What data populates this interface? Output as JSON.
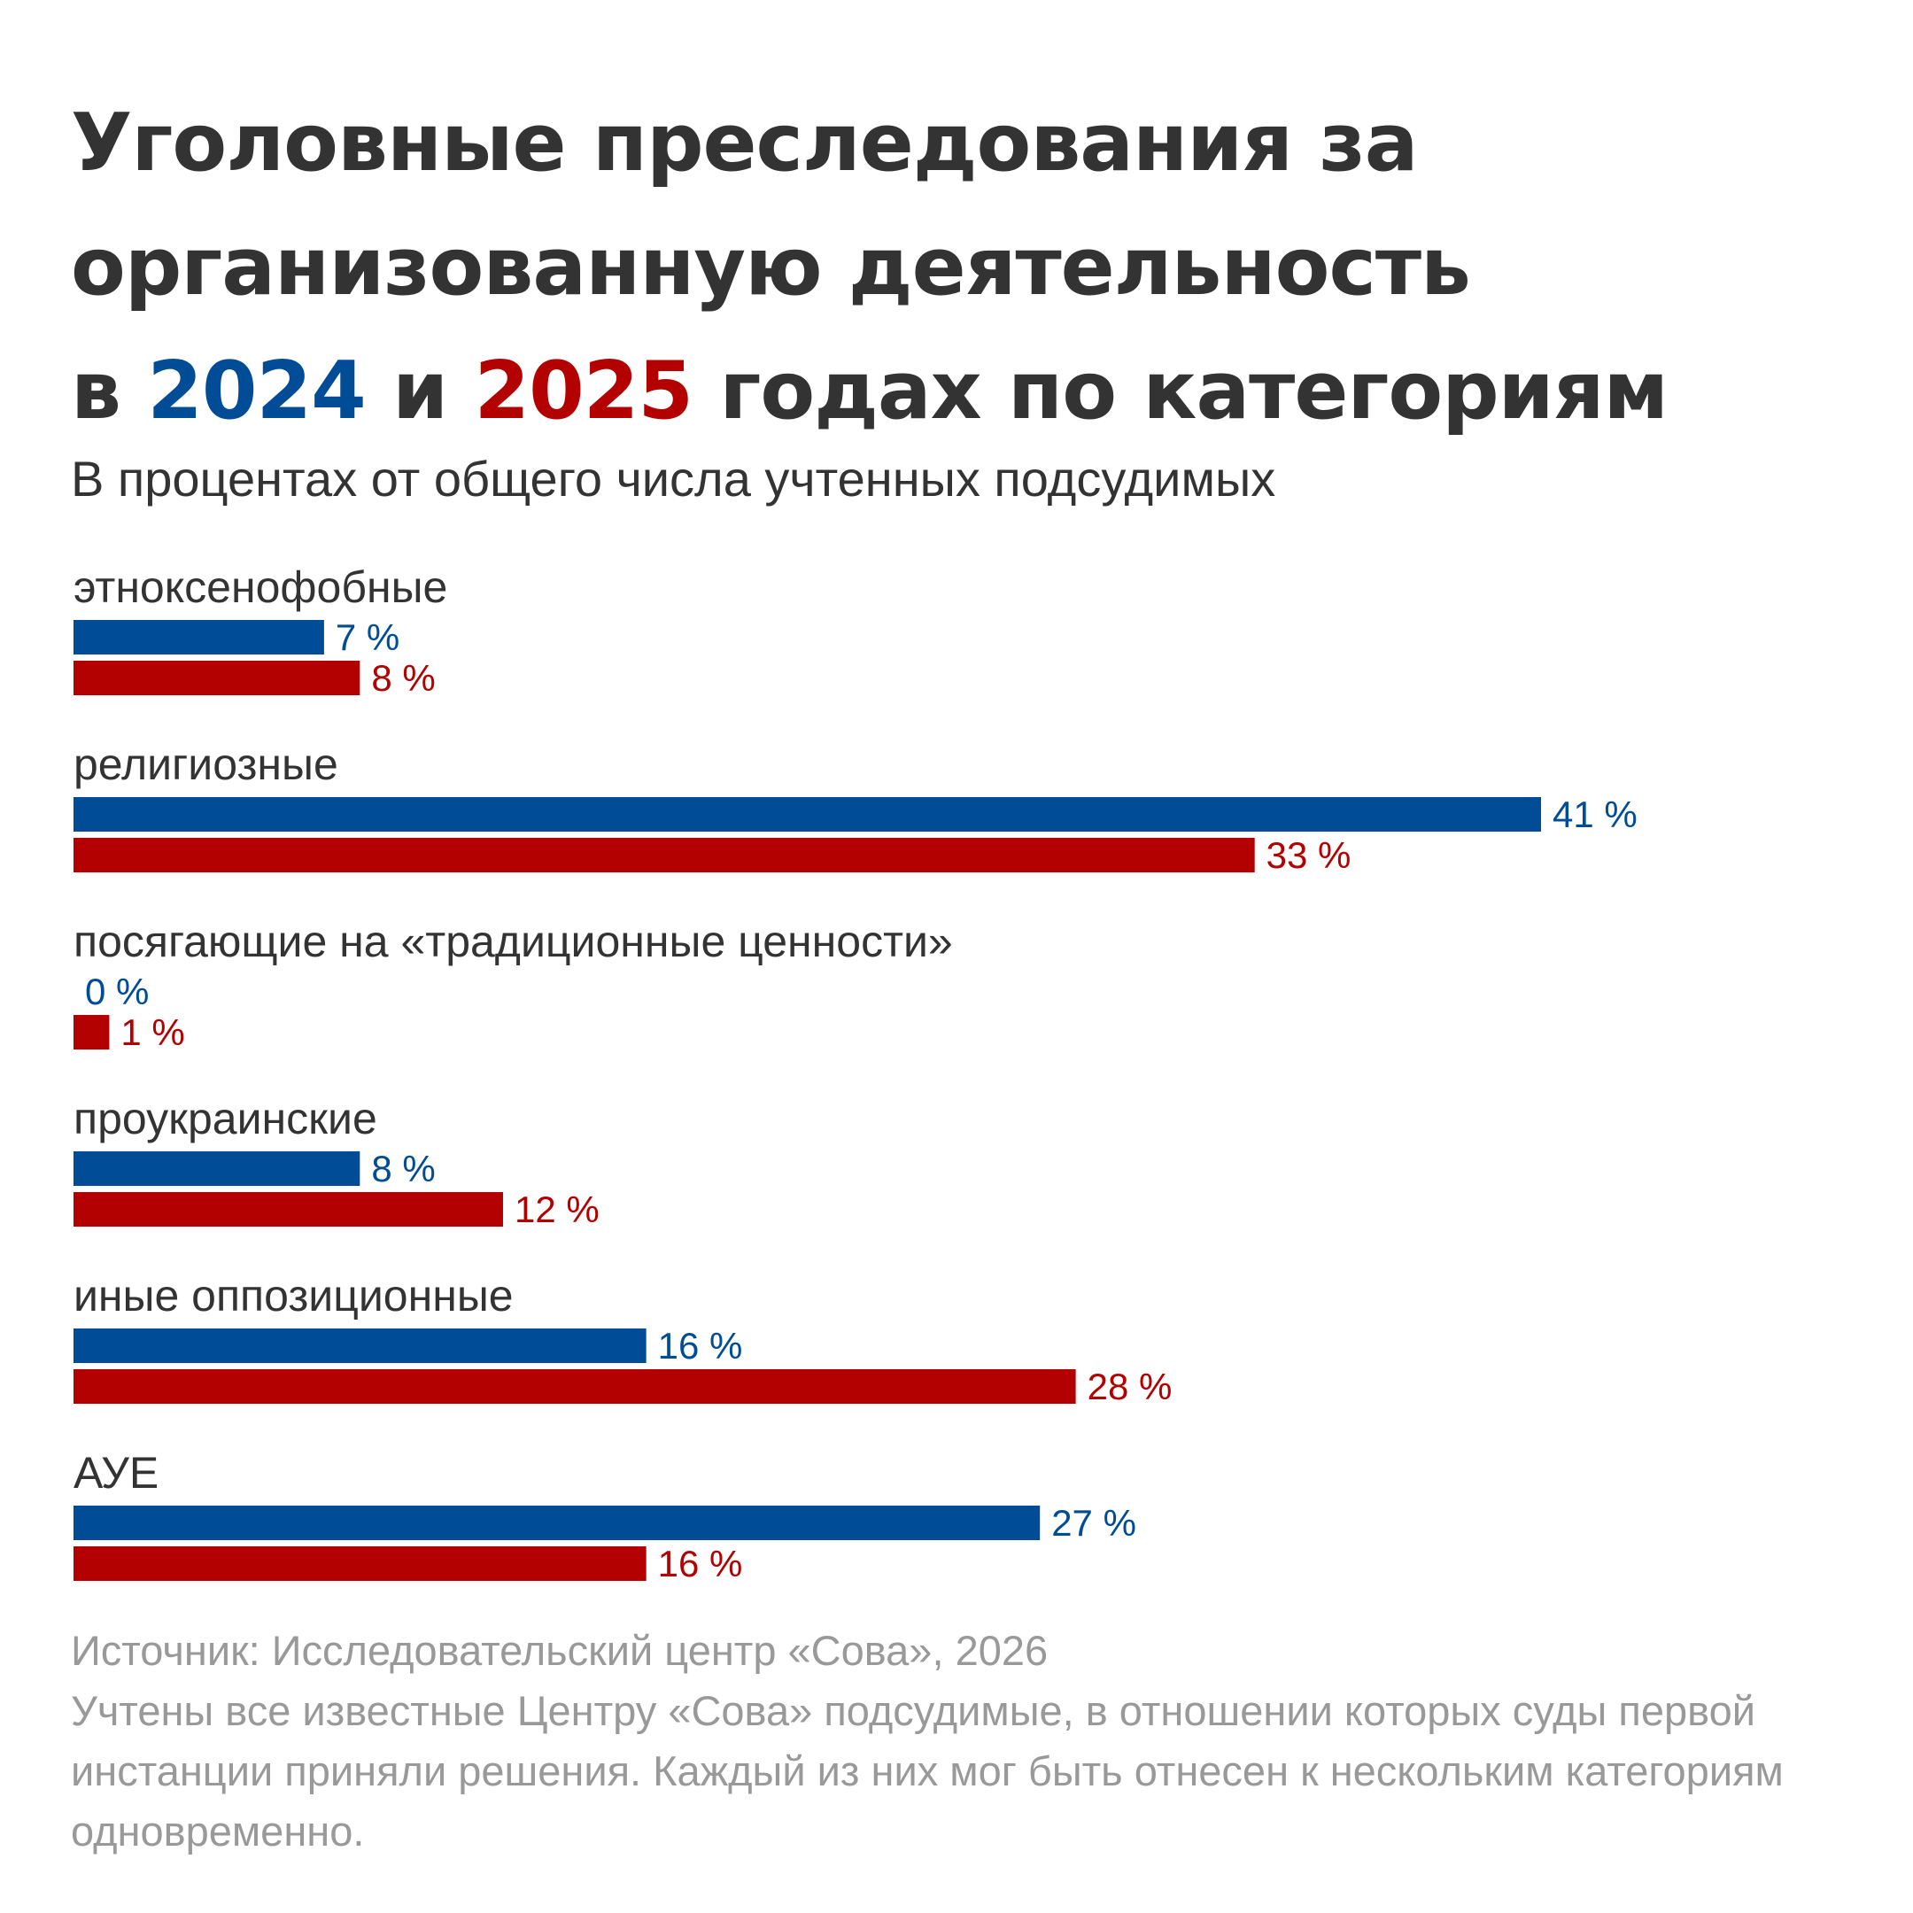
{
  "title": {
    "line1": "Уголовные преследования за",
    "line2": "организованную деятельность",
    "line3_pre": "в ",
    "year_a": "2024",
    "line3_mid": " и ",
    "year_b": "2025",
    "line3_post": " годах по категориям"
  },
  "subtitle": "В процентах от общего числа учтенных подсудимых",
  "colors": {
    "series_2024": "#004c97",
    "series_2025": "#b30000",
    "text": "#333333",
    "muted": "#999999"
  },
  "chart_data": {
    "type": "bar",
    "orientation": "horizontal",
    "categories": [
      "этноксенофобные",
      "религиозные",
      "посягающие на «традиционные ценности»",
      "проукраинские",
      "иные оппозиционные",
      "АУЕ"
    ],
    "series": [
      {
        "name": "2024",
        "values": [
          7,
          41,
          0,
          8,
          16,
          27
        ],
        "labels": [
          "7 %",
          "41 %",
          "0 %",
          "8 %",
          "16 %",
          "27 %"
        ]
      },
      {
        "name": "2025",
        "values": [
          8,
          33,
          1,
          12,
          28,
          16
        ],
        "labels": [
          "8 %",
          "33 %",
          "1 %",
          "12 %",
          "28 %",
          "16 %"
        ]
      }
    ],
    "xlim": [
      0,
      41
    ],
    "grid": false,
    "legend": "none"
  },
  "footer": {
    "source": "Источник: Исследовательский центр «Сова», 2026",
    "note": "Учтены все известные Центру «Сова» подсудимые, в отношении которых суды первой инстанции приняли решения. Каждый из них мог быть отнесен к нескольким категориям одновременно."
  }
}
